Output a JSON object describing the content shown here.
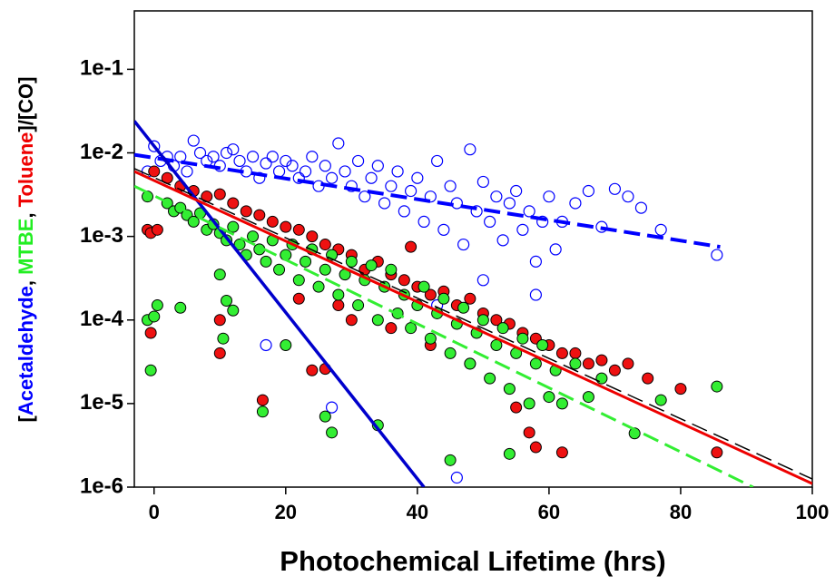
{
  "chart_data": {
    "type": "scatter",
    "xlabel": "Photochemical Lifetime (hrs)",
    "ylabel_parts": [
      {
        "text": "[",
        "color": "#000000"
      },
      {
        "text": "Acetaldehyde",
        "color": "#0000ff"
      },
      {
        "text": ", ",
        "color": "#000000"
      },
      {
        "text": "MTBE",
        "color": "#22ee22"
      },
      {
        "text": ", ",
        "color": "#000000"
      },
      {
        "text": "Toluene",
        "color": "#ee0000"
      },
      {
        "text": "]/[CO]",
        "color": "#000000"
      }
    ],
    "xlim": [
      -3,
      100
    ],
    "xticks": [
      0,
      20,
      40,
      60,
      80,
      100
    ],
    "ylog": true,
    "ylim": [
      1e-06,
      0.5
    ],
    "yticks": [
      {
        "value": 1e-06,
        "label": "1e-6"
      },
      {
        "value": 1e-05,
        "label": "1e-5"
      },
      {
        "value": 0.0001,
        "label": "1e-4"
      },
      {
        "value": 0.001,
        "label": "1e-3"
      },
      {
        "value": 0.01,
        "label": "1e-2"
      },
      {
        "value": 0.1,
        "label": "1e-1"
      }
    ],
    "series": [
      {
        "color": "#0000ff",
        "filled": false,
        "x": [
          -1,
          0,
          1,
          2,
          3,
          4,
          5,
          6,
          7,
          8,
          9,
          10,
          11,
          12,
          13,
          14,
          15,
          16,
          17,
          18,
          19,
          20,
          21,
          22,
          23,
          24,
          25,
          26,
          27,
          28,
          29,
          30,
          31,
          32,
          33,
          34,
          35,
          36,
          37,
          38,
          39,
          40,
          41,
          42,
          43,
          44,
          45,
          46,
          47,
          48,
          49,
          50,
          51,
          52,
          53,
          54,
          55,
          56,
          57,
          58,
          59,
          60,
          61,
          62,
          64,
          66,
          68,
          70,
          72,
          74,
          77,
          85.5,
          46,
          17,
          27,
          43,
          50,
          58
        ],
        "values": [
          0.006,
          0.012,
          0.008,
          0.009,
          0.007,
          0.009,
          0.006,
          0.014,
          0.01,
          0.008,
          0.009,
          0.007,
          0.01,
          0.011,
          0.008,
          0.006,
          0.009,
          0.005,
          0.0075,
          0.009,
          0.006,
          0.008,
          0.007,
          0.005,
          0.006,
          0.009,
          0.004,
          0.007,
          0.005,
          0.013,
          0.006,
          0.004,
          0.008,
          0.003,
          0.005,
          0.007,
          0.0025,
          0.004,
          0.006,
          0.002,
          0.0035,
          0.005,
          0.0015,
          0.003,
          0.008,
          0.0012,
          0.004,
          0.0025,
          0.0008,
          0.011,
          0.002,
          0.0045,
          0.0015,
          0.003,
          0.0009,
          0.0025,
          0.0035,
          0.0012,
          0.002,
          0.0005,
          0.0015,
          0.003,
          0.0007,
          0.0015,
          0.0025,
          0.0035,
          0.0013,
          0.0037,
          0.003,
          0.0022,
          0.0012,
          0.0006,
          1.3e-06,
          5e-05,
          9e-06,
          0.00015,
          0.0003,
          0.0002
        ]
      },
      {
        "color": "#ee1111",
        "filled": true,
        "x": [
          -1,
          -0.5,
          0.5,
          -0.5,
          10,
          10,
          16.5,
          24,
          26,
          39,
          55,
          58,
          62,
          85.5,
          57,
          0,
          2,
          4,
          6,
          8,
          10,
          12,
          14,
          16,
          18,
          20,
          22,
          24,
          26,
          28,
          30,
          32,
          34,
          36,
          38,
          40,
          42,
          44,
          46,
          48,
          50,
          52,
          54,
          56,
          58,
          60,
          62,
          64,
          66,
          68,
          70,
          72,
          75,
          80,
          30,
          36,
          42,
          48,
          22,
          28
        ],
        "values": [
          0.0012,
          0.0011,
          0.0012,
          7e-05,
          4e-05,
          0.0001,
          1.1e-05,
          2.5e-05,
          2.6e-05,
          0.00075,
          9e-06,
          3e-06,
          2.6e-06,
          2.6e-06,
          4.5e-06,
          0.006,
          0.005,
          0.004,
          0.0035,
          0.003,
          0.0032,
          0.0025,
          0.002,
          0.0018,
          0.0015,
          0.0013,
          0.0012,
          0.001,
          0.0008,
          0.0007,
          0.0006,
          0.0004,
          0.0005,
          0.00035,
          0.0003,
          0.00025,
          0.0002,
          0.00022,
          0.00015,
          0.00018,
          0.00012,
          0.0001,
          9e-05,
          7e-05,
          6e-05,
          5e-05,
          4e-05,
          4e-05,
          3e-05,
          3.3e-05,
          2.5e-05,
          3e-05,
          2e-05,
          1.5e-05,
          0.0001,
          8e-05,
          5e-05,
          3e-05,
          0.00018,
          0.00015
        ]
      },
      {
        "color": "#33ee33",
        "filled": true,
        "x": [
          -1,
          0,
          0.5,
          -0.5,
          4,
          10,
          10.5,
          11,
          12,
          16.5,
          20,
          27,
          26,
          34,
          45,
          54,
          85.5,
          73,
          77,
          -1,
          2,
          3,
          4,
          5,
          6,
          7,
          8,
          9,
          10,
          11,
          12,
          13,
          14,
          15,
          16,
          17,
          18,
          19,
          20,
          21,
          22,
          23,
          24,
          25,
          26,
          27,
          28,
          29,
          30,
          31,
          32,
          33,
          34,
          35,
          36,
          37,
          38,
          39,
          40,
          41,
          42,
          43,
          44,
          45,
          46,
          47,
          48,
          49,
          50,
          51,
          52,
          53,
          54,
          55,
          56,
          57,
          58,
          59,
          60,
          61,
          62,
          64,
          66,
          68
        ],
        "values": [
          0.0001,
          0.00011,
          0.00015,
          2.5e-05,
          0.00014,
          0.00035,
          6e-05,
          0.00017,
          0.00013,
          8e-06,
          5e-05,
          4.5e-06,
          7e-06,
          5.5e-06,
          2.1e-06,
          2.5e-06,
          1.6e-05,
          4.4e-06,
          1.1e-05,
          0.003,
          0.0025,
          0.002,
          0.0022,
          0.0018,
          0.0015,
          0.0019,
          0.0012,
          0.0014,
          0.0011,
          0.0009,
          0.0013,
          0.0008,
          0.0006,
          0.001,
          0.0007,
          0.0005,
          0.0009,
          0.0004,
          0.0006,
          0.0008,
          0.0003,
          0.0005,
          0.0007,
          0.00025,
          0.0004,
          0.0006,
          0.0002,
          0.00035,
          0.0005,
          0.00015,
          0.0003,
          0.00045,
          0.0001,
          0.00025,
          0.0004,
          0.00012,
          0.0002,
          8e-05,
          0.00015,
          0.00025,
          6e-05,
          0.00012,
          0.00018,
          4e-05,
          9e-05,
          0.00014,
          3e-05,
          7e-05,
          0.0001,
          2e-05,
          5e-05,
          8e-05,
          1.5e-05,
          4e-05,
          6e-05,
          1e-05,
          3e-05,
          5e-05,
          1.2e-05,
          2.5e-05,
          1e-05,
          3e-05,
          1.2e-05,
          2e-05
        ]
      }
    ],
    "fits": [
      {
        "color": "#0000ff",
        "dash": true,
        "width": 4,
        "x": [
          -3,
          86
        ],
        "values": [
          0.0095,
          0.00075
        ]
      },
      {
        "color": "#0000cc",
        "dash": false,
        "width": 3.5,
        "x": [
          -3,
          41
        ],
        "values": [
          0.024,
          1e-06
        ]
      },
      {
        "color": "#000000",
        "dash": true,
        "width": 1.5,
        "x": [
          -3,
          100
        ],
        "values": [
          0.0065,
          1.25e-06
        ]
      },
      {
        "color": "#ee0000",
        "dash": false,
        "width": 3,
        "x": [
          -3,
          100
        ],
        "values": [
          0.006,
          1.1e-06
        ]
      },
      {
        "color": "#33ee33",
        "dash": true,
        "width": 3,
        "x": [
          -3,
          91
        ],
        "values": [
          0.004,
          1e-06
        ]
      }
    ]
  }
}
